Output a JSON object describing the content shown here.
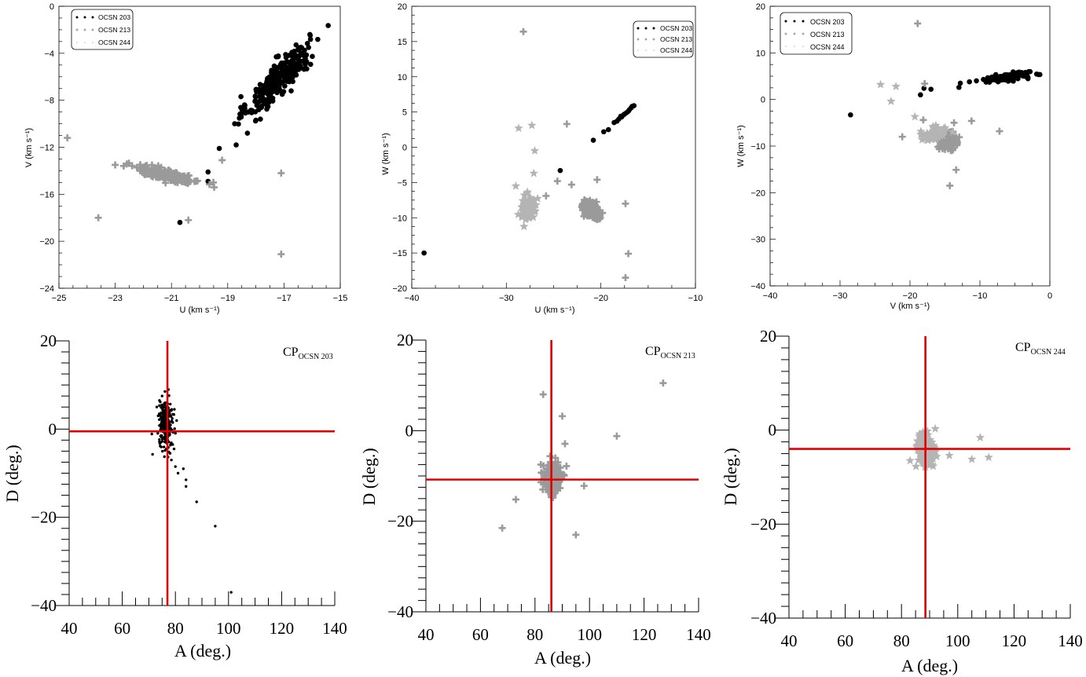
{
  "colors": {
    "ocsn203": "#000000",
    "ocsn213": "#9a9a9a",
    "ocsn244": "#b4b4b4",
    "cross": "#e00000"
  },
  "legend": {
    "entries": [
      "OCSN 203",
      "OCSN 213",
      "OCSN 244"
    ]
  },
  "chart_data": [
    {
      "id": "uv",
      "type": "scatter",
      "xlabel": "U (km s⁻¹)",
      "ylabel": "V (km s⁻¹)",
      "xlim": [
        -25,
        -15
      ],
      "ylim": [
        -24,
        0
      ],
      "xticks": [
        -25,
        -23,
        -21,
        -19,
        -17,
        -15
      ],
      "yticks": [
        -24,
        -20,
        -16,
        -12,
        -8,
        -4,
        0
      ],
      "legend_position": "top-left",
      "series": [
        {
          "name": "OCSN 203",
          "marker": "dot",
          "clusters": [
            {
              "cx": -17.2,
              "cy": -6.2,
              "sx": 0.55,
              "sy": 1.45,
              "rho": 0.85,
              "n": 320
            }
          ],
          "points": [
            [
              -17.8,
              -8.6
            ],
            [
              -17.9,
              -8.8
            ],
            [
              -18.0,
              -9.7
            ],
            [
              -18.3,
              -10.8
            ],
            [
              -18.7,
              -11.8
            ],
            [
              -19.3,
              -12.1
            ],
            [
              -19.7,
              -14.1
            ],
            [
              -19.7,
              -14.9
            ],
            [
              -20.7,
              -18.4
            ],
            [
              -16.4,
              -3.5
            ],
            [
              -16.5,
              -3.7
            ]
          ]
        },
        {
          "name": "OCSN 213",
          "marker": "plus",
          "clusters": [
            {
              "cx": -21.1,
              "cy": -14.4,
              "sx": 0.55,
              "sy": 0.35,
              "rho": -0.8,
              "n": 260
            }
          ],
          "points": [
            [
              -24.7,
              -11.2
            ],
            [
              -23.0,
              -13.5
            ],
            [
              -23.6,
              -18.0
            ],
            [
              -19.2,
              -13.1
            ],
            [
              -20.4,
              -18.2
            ],
            [
              -17.1,
              -14.2
            ],
            [
              -17.1,
              -21.1
            ]
          ]
        },
        {
          "name": "OCSN 244",
          "marker": "star",
          "points": []
        }
      ]
    },
    {
      "id": "uw",
      "type": "scatter",
      "xlabel": "U (km s⁻¹)",
      "ylabel": "W (km s⁻¹)",
      "xlim": [
        -40,
        -10
      ],
      "ylim": [
        -20,
        20
      ],
      "xticks": [
        -40,
        -30,
        -20,
        -10
      ],
      "yticks": [
        -20,
        -15,
        -10,
        -5,
        0,
        5,
        10,
        15,
        20
      ],
      "legend_position": "top-right",
      "series": [
        {
          "name": "OCSN 203",
          "marker": "dot",
          "points": [
            [
              -16.5,
              5.9
            ],
            [
              -16.8,
              5.6
            ],
            [
              -17.0,
              5.3
            ],
            [
              -17.3,
              4.9
            ],
            [
              -17.6,
              4.6
            ],
            [
              -17.8,
              4.3
            ],
            [
              -18.1,
              4.0
            ],
            [
              -18.3,
              3.7
            ],
            [
              -16.7,
              5.8
            ],
            [
              -17.1,
              5.1
            ],
            [
              -17.5,
              4.7
            ],
            [
              -17.9,
              4.4
            ],
            [
              -18.6,
              3.5
            ],
            [
              -19.2,
              2.5
            ],
            [
              -19.7,
              2.2
            ],
            [
              -20.8,
              1.0
            ],
            [
              -24.3,
              -3.3
            ],
            [
              -38.7,
              -15.0
            ]
          ]
        },
        {
          "name": "OCSN 213",
          "marker": "plus",
          "clusters": [
            {
              "cx": -21.1,
              "cy": -8.8,
              "sx": 0.45,
              "sy": 0.6,
              "rho": -0.4,
              "n": 200
            }
          ],
          "points": [
            [
              -28.2,
              16.4
            ],
            [
              -23.6,
              3.3
            ],
            [
              -20.4,
              -4.6
            ],
            [
              -24.6,
              -4.8
            ],
            [
              -23.1,
              -5.3
            ],
            [
              -25.8,
              -6.9
            ],
            [
              -17.4,
              -8.0
            ],
            [
              -17.1,
              -15.1
            ],
            [
              -17.4,
              -18.5
            ]
          ]
        },
        {
          "name": "OCSN 244",
          "marker": "star",
          "clusters": [
            {
              "cx": -27.7,
              "cy": -8.6,
              "sx": 0.45,
              "sy": 0.9,
              "rho": 0.2,
              "n": 70
            }
          ],
          "points": [
            [
              -28.7,
              2.7
            ],
            [
              -27.3,
              3.1
            ],
            [
              -27.0,
              -0.5
            ],
            [
              -27.1,
              -3.7
            ],
            [
              -29.0,
              -5.5
            ],
            [
              -28.1,
              -6.8
            ]
          ]
        }
      ]
    },
    {
      "id": "vw",
      "type": "scatter",
      "xlabel": "V (km s⁻¹)",
      "ylabel": "W (km s⁻¹)",
      "xlim": [
        -40,
        0
      ],
      "ylim": [
        -40,
        20
      ],
      "xticks": [
        -40,
        -30,
        -20,
        -10,
        0
      ],
      "yticks": [
        -40,
        -30,
        -20,
        -10,
        0,
        10,
        20
      ],
      "legend_position": "top-left",
      "series": [
        {
          "name": "OCSN 203",
          "marker": "dot",
          "clusters": [
            {
              "cx": -5.8,
              "cy": 4.8,
              "sx": 1.5,
              "sy": 0.45,
              "rho": 0.6,
              "n": 160
            }
          ],
          "points": [
            [
              -28.5,
              -3.3
            ],
            [
              -18.5,
              1.0
            ],
            [
              -18.0,
              2.4
            ],
            [
              -17.0,
              2.2
            ],
            [
              -13.0,
              2.6
            ],
            [
              -12.8,
              3.5
            ],
            [
              -11.5,
              3.8
            ],
            [
              -10.5,
              4.0
            ],
            [
              -9.5,
              4.3
            ],
            [
              -3.5,
              5.8
            ]
          ]
        },
        {
          "name": "OCSN 213",
          "marker": "plus",
          "clusters": [
            {
              "cx": -14.5,
              "cy": -8.8,
              "sx": 0.6,
              "sy": 0.8,
              "rho": 0.0,
              "n": 200
            }
          ],
          "points": [
            [
              -18.9,
              16.3
            ],
            [
              -17.9,
              3.4
            ],
            [
              -21.1,
              -8.0
            ],
            [
              -18.1,
              -4.4
            ],
            [
              -13.7,
              -5.0
            ],
            [
              -11.2,
              -4.6
            ],
            [
              -7.2,
              -6.8
            ],
            [
              -13.4,
              -15.1
            ],
            [
              -14.3,
              -18.5
            ]
          ]
        },
        {
          "name": "OCSN 244",
          "marker": "star",
          "clusters": [
            {
              "cx": -16.5,
              "cy": -7.5,
              "sx": 1.0,
              "sy": 0.7,
              "rho": 0.3,
              "n": 60
            }
          ],
          "points": [
            [
              -24.2,
              3.2
            ],
            [
              -22.0,
              2.8
            ],
            [
              -22.7,
              -0.4
            ],
            [
              -19.3,
              -3.7
            ],
            [
              -16.3,
              -5.6
            ]
          ]
        }
      ]
    },
    {
      "id": "cp203",
      "type": "scatter",
      "title": "CP",
      "title_sub": "OCSN 203",
      "xlabel": "A (deg.)",
      "ylabel": "D (deg.)",
      "xlim": [
        40,
        140
      ],
      "ylim": [
        -40,
        20
      ],
      "xticks": [
        40,
        60,
        80,
        100,
        120,
        140
      ],
      "yticks": [
        -40,
        -20,
        0,
        20
      ],
      "crosshair": {
        "A": 77,
        "D": -0.5
      },
      "series": [
        {
          "name": "OCSN 203",
          "marker": "smalldot",
          "clusters": [
            {
              "cx": 76.5,
              "cy": 1.0,
              "sx": 1.3,
              "sy": 2.4,
              "rho": 0.0,
              "n": 260
            }
          ],
          "points": [
            [
              74,
              6.5
            ],
            [
              75,
              7.5
            ],
            [
              73,
              5
            ],
            [
              74.5,
              -3
            ],
            [
              78,
              -5.5
            ],
            [
              78.5,
              -7
            ],
            [
              80,
              -8.5
            ],
            [
              81,
              -10
            ],
            [
              83,
              -9
            ],
            [
              84,
              -11.5
            ],
            [
              84,
              -13
            ],
            [
              88,
              -16.5
            ],
            [
              95,
              -22
            ],
            [
              101,
              -37
            ],
            [
              79,
              -3.5
            ],
            [
              79.5,
              -4.5
            ],
            [
              73.5,
              3
            ]
          ]
        }
      ]
    },
    {
      "id": "cp213",
      "type": "scatter",
      "title": "CP",
      "title_sub": "OCSN 213",
      "xlabel": "A (deg.)",
      "ylabel": "D (deg.)",
      "xlim": [
        40,
        140
      ],
      "ylim": [
        -40,
        20
      ],
      "xticks": [
        40,
        60,
        80,
        100,
        120,
        140
      ],
      "yticks": [
        -40,
        -20,
        0,
        20
      ],
      "crosshair": {
        "A": 86,
        "D": -10.8
      },
      "series": [
        {
          "name": "OCSN 213",
          "marker": "plus",
          "clusters": [
            {
              "cx": 86.5,
              "cy": -10.5,
              "sx": 1.6,
              "sy": 1.9,
              "rho": 0.0,
              "n": 220
            }
          ],
          "points": [
            [
              127,
              10.5
            ],
            [
              83,
              8
            ],
            [
              90,
              3.2
            ],
            [
              110,
              -1.2
            ],
            [
              91,
              -2.9
            ],
            [
              98,
              -12.2
            ],
            [
              73,
              -15.2
            ],
            [
              68,
              -21.5
            ],
            [
              95,
              -23
            ]
          ]
        }
      ]
    },
    {
      "id": "cp244",
      "type": "scatter",
      "title": "CP",
      "title_sub": "OCSN 244",
      "xlabel": "A (deg.)",
      "ylabel": "D (deg.)",
      "xlim": [
        40,
        140
      ],
      "ylim": [
        -40,
        20
      ],
      "xticks": [
        40,
        60,
        80,
        100,
        120,
        140
      ],
      "yticks": [
        -40,
        -20,
        0,
        20
      ],
      "crosshair": {
        "A": 88.5,
        "D": -4
      },
      "series": [
        {
          "name": "OCSN 244",
          "marker": "star",
          "clusters": [
            {
              "cx": 88.5,
              "cy": -4.5,
              "sx": 1.7,
              "sy": 2.0,
              "rho": 0.0,
              "n": 140
            }
          ],
          "points": [
            [
              92,
              0.3
            ],
            [
              108,
              -1.6
            ],
            [
              97,
              -5.4
            ],
            [
              105,
              -6.2
            ],
            [
              111,
              -5.8
            ]
          ]
        }
      ]
    }
  ]
}
